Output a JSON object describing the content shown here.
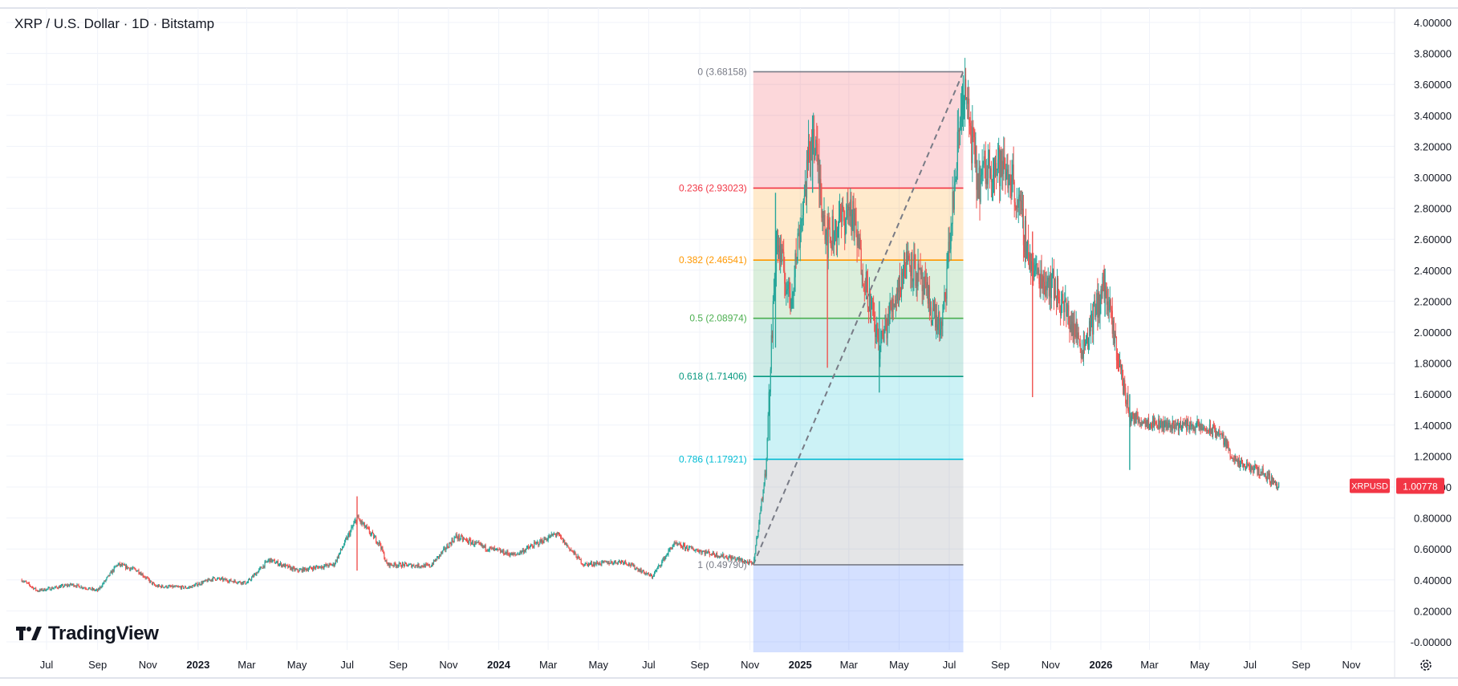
{
  "header": {
    "title": "XRP / U.S. Dollar · 1D · Bitstamp"
  },
  "branding": {
    "name": "TradingView"
  },
  "icons": {
    "logo": "tradingview-logo-icon",
    "settings": "gear-icon"
  },
  "colors": {
    "up": "#26a69a",
    "down": "#ef5350",
    "price_tag": "#f23645",
    "text": "#131722",
    "grid": "#f0f3fa"
  },
  "price_tag": {
    "symbol": "XRPUSD",
    "value": "1.00778"
  },
  "chart_data": {
    "type": "candlestick",
    "symbol": "XRPUSD",
    "interval": "1D",
    "exchange": "Bitstamp",
    "y_axis": {
      "ticks": [
        "4.00000",
        "3.80000",
        "3.60000",
        "3.40000",
        "3.20000",
        "3.00000",
        "2.80000",
        "2.60000",
        "2.40000",
        "2.20000",
        "2.00000",
        "1.80000",
        "1.60000",
        "1.40000",
        "1.20000",
        "1.00000",
        "0.80000",
        "0.60000",
        "0.40000",
        "0.20000",
        "-0.00000"
      ],
      "range": [
        0,
        4
      ],
      "position": "right"
    },
    "x_axis": {
      "ticks": [
        {
          "label": "Jul",
          "date": "2022-07-01",
          "bold": false
        },
        {
          "label": "Sep",
          "date": "2022-09-01",
          "bold": false
        },
        {
          "label": "Nov",
          "date": "2022-11-01",
          "bold": false
        },
        {
          "label": "2023",
          "date": "2023-01-01",
          "bold": true
        },
        {
          "label": "Mar",
          "date": "2023-03-01",
          "bold": false
        },
        {
          "label": "May",
          "date": "2023-05-01",
          "bold": false
        },
        {
          "label": "Jul",
          "date": "2023-07-01",
          "bold": false
        },
        {
          "label": "Sep",
          "date": "2023-09-01",
          "bold": false
        },
        {
          "label": "Nov",
          "date": "2023-11-01",
          "bold": false
        },
        {
          "label": "2024",
          "date": "2024-01-01",
          "bold": true
        },
        {
          "label": "Mar",
          "date": "2024-03-01",
          "bold": false
        },
        {
          "label": "May",
          "date": "2024-05-01",
          "bold": false
        },
        {
          "label": "Jul",
          "date": "2024-07-01",
          "bold": false
        },
        {
          "label": "Sep",
          "date": "2024-09-01",
          "bold": false
        },
        {
          "label": "Nov",
          "date": "2024-11-01",
          "bold": false
        },
        {
          "label": "2025",
          "date": "2025-01-01",
          "bold": true
        },
        {
          "label": "Mar",
          "date": "2025-03-01",
          "bold": false
        },
        {
          "label": "May",
          "date": "2025-05-01",
          "bold": false
        },
        {
          "label": "Jul",
          "date": "2025-07-01",
          "bold": false
        },
        {
          "label": "Sep",
          "date": "2025-09-01",
          "bold": false
        },
        {
          "label": "Nov",
          "date": "2025-11-01",
          "bold": false
        },
        {
          "label": "2026",
          "date": "2026-01-01",
          "bold": true
        },
        {
          "label": "Mar",
          "date": "2026-03-01",
          "bold": false
        },
        {
          "label": "May",
          "date": "2026-05-01",
          "bold": false
        },
        {
          "label": "Jul",
          "date": "2026-07-01",
          "bold": false
        },
        {
          "label": "Sep",
          "date": "2026-09-01",
          "bold": false
        },
        {
          "label": "Nov",
          "date": "2026-11-01",
          "bold": false
        }
      ]
    },
    "grid": true,
    "price_path": [
      {
        "date": "2022-06-01",
        "price": 0.4
      },
      {
        "date": "2022-06-20",
        "price": 0.33
      },
      {
        "date": "2022-08-01",
        "price": 0.37
      },
      {
        "date": "2022-09-01",
        "price": 0.33
      },
      {
        "date": "2022-09-25",
        "price": 0.5
      },
      {
        "date": "2022-10-20",
        "price": 0.46
      },
      {
        "date": "2022-11-10",
        "price": 0.36
      },
      {
        "date": "2022-12-20",
        "price": 0.35
      },
      {
        "date": "2023-01-20",
        "price": 0.41
      },
      {
        "date": "2023-03-01",
        "price": 0.38
      },
      {
        "date": "2023-03-28",
        "price": 0.53
      },
      {
        "date": "2023-05-01",
        "price": 0.46
      },
      {
        "date": "2023-06-15",
        "price": 0.5
      },
      {
        "date": "2023-07-13",
        "price": 0.8
      },
      {
        "date": "2023-08-10",
        "price": 0.63
      },
      {
        "date": "2023-08-18",
        "price": 0.5
      },
      {
        "date": "2023-10-10",
        "price": 0.49
      },
      {
        "date": "2023-11-10",
        "price": 0.68
      },
      {
        "date": "2023-12-15",
        "price": 0.61
      },
      {
        "date": "2024-01-20",
        "price": 0.56
      },
      {
        "date": "2024-03-11",
        "price": 0.7
      },
      {
        "date": "2024-04-13",
        "price": 0.5
      },
      {
        "date": "2024-06-01",
        "price": 0.52
      },
      {
        "date": "2024-07-05",
        "price": 0.42
      },
      {
        "date": "2024-07-31",
        "price": 0.63
      },
      {
        "date": "2024-09-15",
        "price": 0.57
      },
      {
        "date": "2024-10-20",
        "price": 0.53
      },
      {
        "date": "2024-11-05",
        "price": 0.5
      },
      {
        "date": "2024-11-20",
        "price": 1.1
      },
      {
        "date": "2024-12-03",
        "price": 2.6
      },
      {
        "date": "2024-12-20",
        "price": 2.2
      },
      {
        "date": "2025-01-16",
        "price": 3.3
      },
      {
        "date": "2025-02-03",
        "price": 2.6
      },
      {
        "date": "2025-03-03",
        "price": 2.8
      },
      {
        "date": "2025-04-07",
        "price": 1.9
      },
      {
        "date": "2025-05-12",
        "price": 2.5
      },
      {
        "date": "2025-06-22",
        "price": 2.0
      },
      {
        "date": "2025-07-18",
        "price": 3.6
      },
      {
        "date": "2025-08-05",
        "price": 2.95
      },
      {
        "date": "2025-08-20",
        "price": 3.1
      },
      {
        "date": "2025-09-15",
        "price": 3.0
      },
      {
        "date": "2025-10-10",
        "price": 2.4
      },
      {
        "date": "2025-11-05",
        "price": 2.3
      },
      {
        "date": "2025-12-10",
        "price": 1.9
      },
      {
        "date": "2026-01-05",
        "price": 2.3
      },
      {
        "date": "2026-02-05",
        "price": 1.45
      },
      {
        "date": "2026-03-20",
        "price": 1.4
      },
      {
        "date": "2026-04-20",
        "price": 1.4
      },
      {
        "date": "2026-05-25",
        "price": 1.35
      },
      {
        "date": "2026-06-15",
        "price": 1.15
      },
      {
        "date": "2026-07-15",
        "price": 1.1
      },
      {
        "date": "2026-08-05",
        "price": 1.008
      }
    ],
    "spikes": [
      {
        "date": "2023-07-13",
        "high": 0.94,
        "low": 0.46
      },
      {
        "date": "2024-11-25",
        "high": 1.63,
        "low": 1.3
      },
      {
        "date": "2024-12-02",
        "high": 2.9,
        "low": 1.9
      },
      {
        "date": "2025-01-16",
        "high": 3.4,
        "low": 2.9
      },
      {
        "date": "2025-02-03",
        "high": 2.75,
        "low": 1.77
      },
      {
        "date": "2025-04-07",
        "high": 2.2,
        "low": 1.61
      },
      {
        "date": "2025-07-18",
        "high": 3.66,
        "low": 3.3
      },
      {
        "date": "2025-10-10",
        "high": 2.65,
        "low": 1.58
      },
      {
        "date": "2026-01-06",
        "high": 2.41,
        "low": 2.1
      },
      {
        "date": "2026-02-05",
        "high": 1.6,
        "low": 1.11
      }
    ],
    "last_price": 1.00778,
    "fibonacci": {
      "start": {
        "date": "2024-11-05",
        "price": 0.4979
      },
      "end": {
        "date": "2025-07-18",
        "price": 3.68158
      },
      "levels": [
        {
          "label": "0 (3.68158)",
          "price": 3.68158,
          "color": "#787b86",
          "fill": "rgba(242,54,69,0.20)"
        },
        {
          "label": "0.236 (2.93023)",
          "price": 2.93023,
          "color": "#f23645",
          "fill": "rgba(255,152,0,0.20)"
        },
        {
          "label": "0.382 (2.46541)",
          "price": 2.46541,
          "color": "#ff9800",
          "fill": "rgba(76,175,80,0.20)"
        },
        {
          "label": "0.5 (2.08974)",
          "price": 2.08974,
          "color": "#4caf50",
          "fill": "rgba(8,153,129,0.20)"
        },
        {
          "label": "0.618 (1.71406)",
          "price": 1.71406,
          "color": "#089981",
          "fill": "rgba(0,188,212,0.20)"
        },
        {
          "label": "0.786 (1.17921)",
          "price": 1.17921,
          "color": "#00bcd4",
          "fill": "rgba(120,123,134,0.20)"
        },
        {
          "label": "1 (0.49790)",
          "price": 0.4979,
          "color": "#787b86",
          "fill": "rgba(41,98,255,0.20)"
        }
      ],
      "extension_fill_to": 0
    }
  }
}
